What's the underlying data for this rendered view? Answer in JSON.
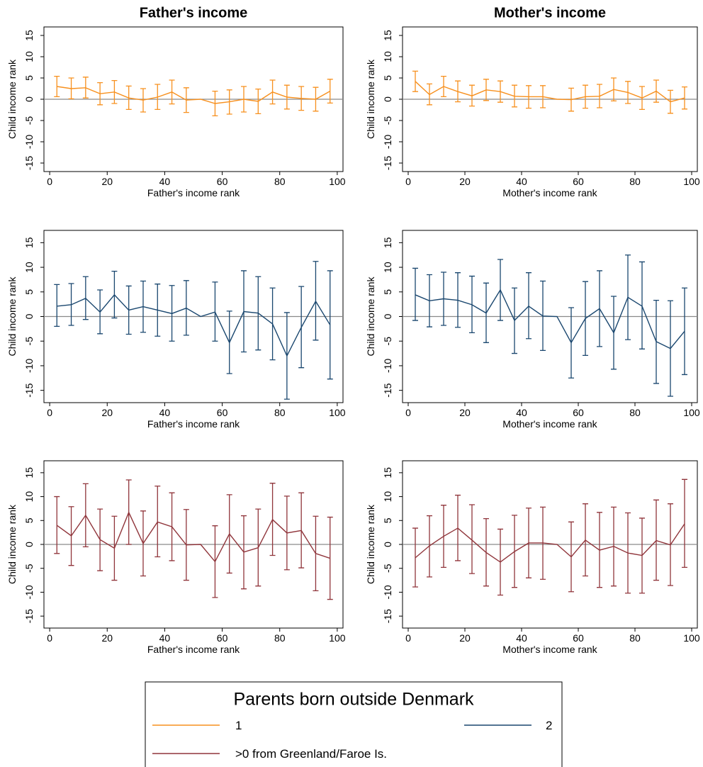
{
  "chart_data": [
    {
      "type": "line",
      "title": "Father's income",
      "xlabel": "Father's income rank",
      "ylabel": "Child income rank",
      "x": [
        2.5,
        7.5,
        12.5,
        17.5,
        22.5,
        27.5,
        32.5,
        37.5,
        42.5,
        47.5,
        52.5,
        57.5,
        62.5,
        67.5,
        72.5,
        77.5,
        82.5,
        87.5,
        92.5,
        97.5
      ],
      "series": [
        {
          "name": "1",
          "color": "#f7901e",
          "values": [
            3.0,
            2.5,
            2.7,
            1.3,
            1.7,
            0.3,
            -0.2,
            0.5,
            1.7,
            -0.2,
            0,
            -1.0,
            -0.6,
            0,
            -0.5,
            1.7,
            0.5,
            0.2,
            0,
            1.9
          ],
          "lower": [
            0.6,
            0.1,
            0.3,
            -1.3,
            -1.0,
            -2.4,
            -3.0,
            -2.4,
            -1.1,
            -3.1,
            null,
            -3.9,
            -3.5,
            -3.0,
            -3.4,
            -1.1,
            -2.3,
            -2.6,
            -2.8,
            -0.9
          ],
          "upper": [
            5.4,
            5.0,
            5.2,
            3.9,
            4.4,
            3.1,
            2.5,
            3.5,
            4.5,
            2.7,
            null,
            1.9,
            2.2,
            3.0,
            2.4,
            4.5,
            3.3,
            3.0,
            2.8,
            4.7
          ]
        }
      ],
      "xlim": [
        -2,
        102
      ],
      "ylim": [
        -17,
        17
      ],
      "xticks": [
        0,
        20,
        40,
        60,
        80,
        100
      ],
      "yticks": [
        -15,
        -10,
        -5,
        0,
        5,
        10,
        15
      ]
    },
    {
      "type": "line",
      "title": "Mother's income",
      "xlabel": "Mother's income rank",
      "ylabel": "Child income rank",
      "x": [
        2.5,
        7.5,
        12.5,
        17.5,
        22.5,
        27.5,
        32.5,
        37.5,
        42.5,
        47.5,
        52.5,
        57.5,
        62.5,
        67.5,
        72.5,
        77.5,
        82.5,
        87.5,
        92.5,
        97.5
      ],
      "series": [
        {
          "name": "1",
          "color": "#f7901e",
          "values": [
            4.2,
            1.1,
            3.0,
            1.8,
            0.8,
            2.2,
            1.8,
            0.7,
            0.6,
            0.6,
            0,
            -0.1,
            0.6,
            0.7,
            2.3,
            1.6,
            0.3,
            1.9,
            -0.6,
            0.3
          ],
          "lower": [
            1.8,
            -1.3,
            0.6,
            -0.6,
            -1.6,
            -0.3,
            -0.7,
            -1.8,
            -2.1,
            -2.0,
            null,
            -2.8,
            -2.1,
            -2.0,
            -0.4,
            -1.0,
            -2.4,
            -0.7,
            -3.3,
            -2.3
          ],
          "upper": [
            6.6,
            3.6,
            5.4,
            4.3,
            3.3,
            4.7,
            4.3,
            3.3,
            3.2,
            3.2,
            null,
            2.6,
            3.3,
            3.5,
            5.0,
            4.2,
            3.0,
            4.5,
            2.1,
            2.9
          ]
        }
      ],
      "xlim": [
        -2,
        102
      ],
      "ylim": [
        -17,
        17
      ],
      "xticks": [
        0,
        20,
        40,
        60,
        80,
        100
      ],
      "yticks": [
        -15,
        -10,
        -5,
        0,
        5,
        10,
        15
      ]
    },
    {
      "type": "line",
      "xlabel": "Father's income rank",
      "ylabel": "Child income rank",
      "x": [
        2.5,
        7.5,
        12.5,
        17.5,
        22.5,
        27.5,
        32.5,
        37.5,
        42.5,
        47.5,
        52.5,
        57.5,
        62.5,
        67.5,
        72.5,
        77.5,
        82.5,
        87.5,
        92.5,
        97.5
      ],
      "series": [
        {
          "name": "2",
          "color": "#1a476f",
          "values": [
            2.1,
            2.4,
            3.7,
            0.9,
            4.4,
            1.3,
            2.0,
            1.3,
            0.6,
            1.7,
            0,
            0.9,
            -5.3,
            1.0,
            0.7,
            -1.5,
            -8.0,
            -2.2,
            3.1,
            -1.7
          ],
          "lower": [
            -2.0,
            -1.8,
            -0.6,
            -3.5,
            -0.3,
            -3.6,
            -3.2,
            -4.0,
            -5.0,
            -3.8,
            null,
            -5.0,
            -11.6,
            -7.2,
            -6.8,
            -8.8,
            -16.8,
            -10.4,
            -4.8,
            -12.7
          ],
          "upper": [
            6.5,
            6.7,
            8.1,
            5.4,
            9.2,
            6.2,
            7.2,
            6.6,
            6.3,
            7.3,
            null,
            7.0,
            1.1,
            9.3,
            8.1,
            5.8,
            0.8,
            6.1,
            11.2,
            9.3
          ]
        }
      ],
      "xlim": [
        -2,
        102
      ],
      "ylim": [
        -17.5,
        17.5
      ],
      "xticks": [
        0,
        20,
        40,
        60,
        80,
        100
      ],
      "yticks": [
        -15,
        -10,
        -5,
        0,
        5,
        10,
        15
      ]
    },
    {
      "type": "line",
      "xlabel": "Mother's income rank",
      "ylabel": "Child income rank",
      "x": [
        2.5,
        7.5,
        12.5,
        17.5,
        22.5,
        27.5,
        32.5,
        37.5,
        42.5,
        47.5,
        52.5,
        57.5,
        62.5,
        67.5,
        72.5,
        77.5,
        82.5,
        87.5,
        92.5,
        97.5
      ],
      "series": [
        {
          "name": "2",
          "color": "#1a476f",
          "values": [
            4.4,
            3.2,
            3.6,
            3.3,
            2.4,
            0.7,
            5.4,
            -0.8,
            2.1,
            0.1,
            0,
            -5.3,
            -0.4,
            1.6,
            -3.3,
            3.9,
            2.1,
            -5.1,
            -6.5,
            -3.0
          ],
          "lower": [
            -0.8,
            -2.1,
            -1.8,
            -2.2,
            -3.3,
            -5.3,
            -0.8,
            -7.5,
            -4.5,
            -6.9,
            null,
            -12.5,
            -7.9,
            -6.1,
            -10.7,
            -4.7,
            -6.6,
            -13.6,
            -16.2,
            -11.8
          ],
          "upper": [
            9.8,
            8.5,
            9.0,
            8.9,
            8.2,
            6.8,
            11.6,
            5.8,
            8.9,
            7.2,
            null,
            1.8,
            7.1,
            9.3,
            4.1,
            12.5,
            11.1,
            3.3,
            3.2,
            5.8
          ]
        }
      ],
      "xlim": [
        -2,
        102
      ],
      "ylim": [
        -17.5,
        17.5
      ],
      "xticks": [
        0,
        20,
        40,
        60,
        80,
        100
      ],
      "yticks": [
        -15,
        -10,
        -5,
        0,
        5,
        10,
        15
      ]
    },
    {
      "type": "line",
      "xlabel": "Father's income rank",
      "ylabel": "Child income rank",
      "x": [
        2.5,
        7.5,
        12.5,
        17.5,
        22.5,
        27.5,
        32.5,
        37.5,
        42.5,
        47.5,
        52.5,
        57.5,
        62.5,
        67.5,
        72.5,
        77.5,
        82.5,
        87.5,
        92.5,
        97.5
      ],
      "series": [
        {
          "name": ">0 from Greenland/Faroe Is.",
          "color": "#90353b",
          "values": [
            4.0,
            1.8,
            6.1,
            1.0,
            -0.8,
            6.7,
            0.2,
            4.7,
            3.7,
            -0.1,
            0,
            -3.6,
            2.2,
            -1.6,
            -0.7,
            5.2,
            2.4,
            2.9,
            -1.9,
            -2.9
          ],
          "lower": [
            -1.9,
            -4.4,
            -0.5,
            -5.5,
            -7.5,
            0,
            -6.6,
            -2.6,
            -3.4,
            -7.5,
            null,
            -11.1,
            -6.0,
            -9.3,
            -8.7,
            -2.3,
            -5.3,
            -4.9,
            -9.7,
            -11.5
          ],
          "upper": [
            10.0,
            7.9,
            12.7,
            7.4,
            5.9,
            13.5,
            7.0,
            12.2,
            10.8,
            7.3,
            null,
            3.9,
            10.4,
            6.0,
            7.4,
            12.8,
            10.1,
            10.8,
            5.9,
            5.7
          ]
        }
      ],
      "xlim": [
        -2,
        102
      ],
      "ylim": [
        -17.5,
        17.5
      ],
      "xticks": [
        0,
        20,
        40,
        60,
        80,
        100
      ],
      "yticks": [
        -15,
        -10,
        -5,
        0,
        5,
        10,
        15
      ]
    },
    {
      "type": "line",
      "xlabel": "Mother's income rank",
      "ylabel": "Child income rank",
      "x": [
        2.5,
        7.5,
        12.5,
        17.5,
        22.5,
        27.5,
        32.5,
        37.5,
        42.5,
        47.5,
        52.5,
        57.5,
        62.5,
        67.5,
        72.5,
        77.5,
        82.5,
        87.5,
        92.5,
        97.5
      ],
      "series": [
        {
          "name": ">0 from Greenland/Faroe Is.",
          "color": "#90353b",
          "values": [
            -2.8,
            -0.3,
            1.7,
            3.4,
            0.9,
            -1.7,
            -3.7,
            -1.5,
            0.3,
            0.3,
            0,
            -2.6,
            0.9,
            -1.2,
            -0.4,
            -1.8,
            -2.3,
            0.8,
            -0.1,
            4.3
          ],
          "lower": [
            -8.9,
            -6.8,
            -4.8,
            -3.4,
            -6.1,
            -8.7,
            -10.6,
            -9.0,
            -7.0,
            -7.3,
            null,
            -9.9,
            -6.6,
            -9.0,
            -8.7,
            -10.2,
            -10.2,
            -7.5,
            -8.6,
            -4.8
          ],
          "upper": [
            3.4,
            6.0,
            8.2,
            10.3,
            8.3,
            5.4,
            3.2,
            6.1,
            7.6,
            7.8,
            null,
            4.7,
            8.5,
            6.7,
            7.8,
            6.6,
            5.5,
            9.3,
            8.5,
            13.6
          ]
        }
      ],
      "xlim": [
        -2,
        102
      ],
      "ylim": [
        -17.5,
        17.5
      ],
      "xticks": [
        0,
        20,
        40,
        60,
        80,
        100
      ],
      "yticks": [
        -15,
        -10,
        -5,
        0,
        5,
        10,
        15
      ]
    }
  ],
  "legend": {
    "title": "Parents born outside Denmark"
  }
}
